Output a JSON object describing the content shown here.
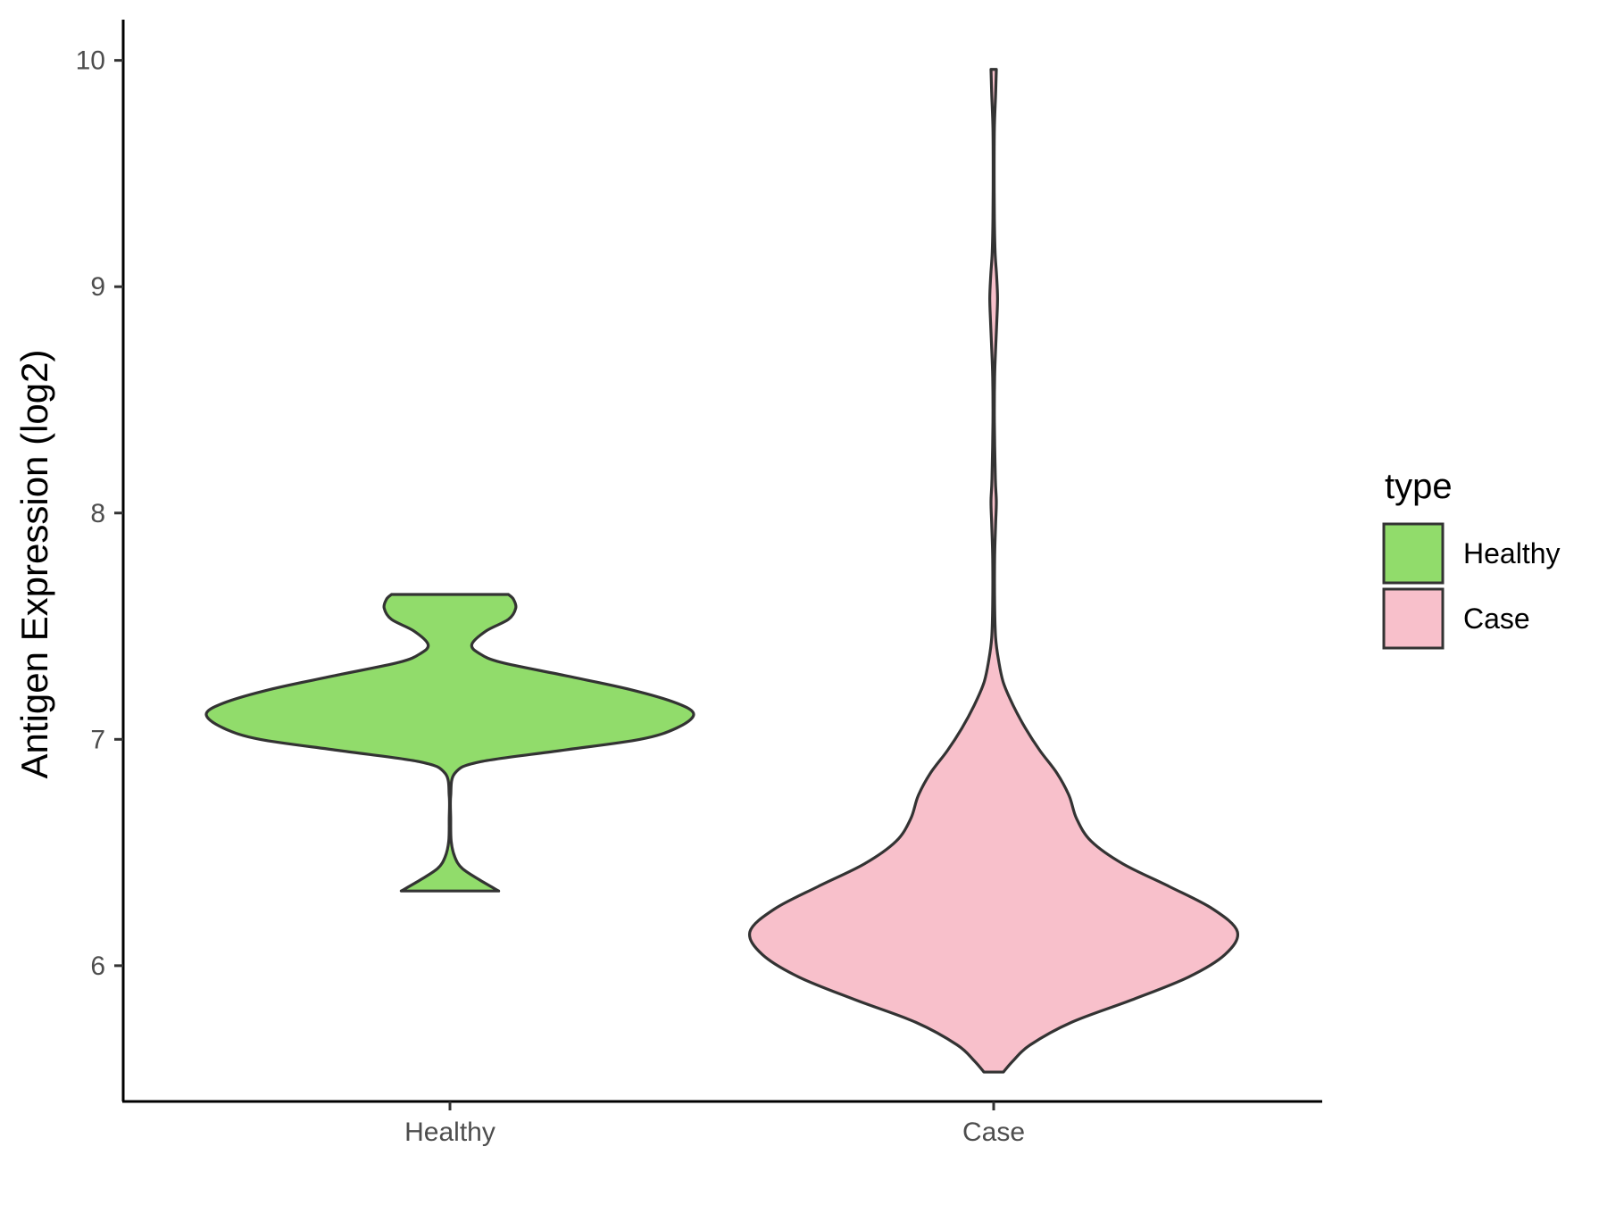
{
  "chart_data": {
    "type": "violin",
    "title": "",
    "xlabel": "",
    "ylabel": "Antigen Expression (log2)",
    "categories": [
      "Healthy",
      "Case"
    ],
    "ylim": [
      5.4,
      10.18
    ],
    "yticks": [
      6,
      7,
      8,
      9,
      10
    ],
    "grid": false,
    "legend": {
      "title": "type",
      "position": "right",
      "entries": [
        {
          "label": "Healthy",
          "color": "#91DC6B"
        },
        {
          "label": "Case",
          "color": "#F8C0CB"
        }
      ]
    },
    "series": [
      {
        "name": "Healthy",
        "color": "#91DC6B",
        "min": 6.33,
        "max": 7.64,
        "density": [
          [
            6.33,
            0.2
          ],
          [
            6.38,
            0.12
          ],
          [
            6.43,
            0.05
          ],
          [
            6.48,
            0.02
          ],
          [
            6.55,
            0.005
          ],
          [
            6.65,
            0.003
          ],
          [
            6.75,
            0.003
          ],
          [
            6.85,
            0.02
          ],
          [
            6.9,
            0.12
          ],
          [
            6.95,
            0.45
          ],
          [
            7.0,
            0.78
          ],
          [
            7.05,
            0.93
          ],
          [
            7.11,
            1.0
          ],
          [
            7.16,
            0.93
          ],
          [
            7.22,
            0.74
          ],
          [
            7.28,
            0.48
          ],
          [
            7.34,
            0.21
          ],
          [
            7.38,
            0.12
          ],
          [
            7.42,
            0.09
          ],
          [
            7.48,
            0.15
          ],
          [
            7.53,
            0.24
          ],
          [
            7.58,
            0.27
          ],
          [
            7.62,
            0.26
          ],
          [
            7.64,
            0.24
          ]
        ]
      },
      {
        "name": "Case",
        "color": "#F8C0CB",
        "min": 5.53,
        "max": 9.96,
        "density": [
          [
            5.53,
            0.04
          ],
          [
            5.58,
            0.08
          ],
          [
            5.65,
            0.15
          ],
          [
            5.75,
            0.32
          ],
          [
            5.85,
            0.57
          ],
          [
            5.95,
            0.8
          ],
          [
            6.05,
            0.95
          ],
          [
            6.15,
            1.0
          ],
          [
            6.25,
            0.9
          ],
          [
            6.35,
            0.72
          ],
          [
            6.45,
            0.53
          ],
          [
            6.55,
            0.4
          ],
          [
            6.65,
            0.34
          ],
          [
            6.75,
            0.31
          ],
          [
            6.85,
            0.26
          ],
          [
            6.95,
            0.19
          ],
          [
            7.05,
            0.13
          ],
          [
            7.15,
            0.08
          ],
          [
            7.25,
            0.04
          ],
          [
            7.35,
            0.02
          ],
          [
            7.45,
            0.008
          ],
          [
            7.6,
            0.004
          ],
          [
            7.8,
            0.004
          ],
          [
            7.95,
            0.008
          ],
          [
            8.05,
            0.011
          ],
          [
            8.15,
            0.007
          ],
          [
            8.4,
            0.003
          ],
          [
            8.6,
            0.004
          ],
          [
            8.75,
            0.009
          ],
          [
            8.85,
            0.013
          ],
          [
            8.95,
            0.016
          ],
          [
            9.05,
            0.012
          ],
          [
            9.15,
            0.006
          ],
          [
            9.3,
            0.003
          ],
          [
            9.5,
            0.002
          ],
          [
            9.7,
            0.003
          ],
          [
            9.85,
            0.008
          ],
          [
            9.96,
            0.011
          ]
        ]
      }
    ]
  }
}
